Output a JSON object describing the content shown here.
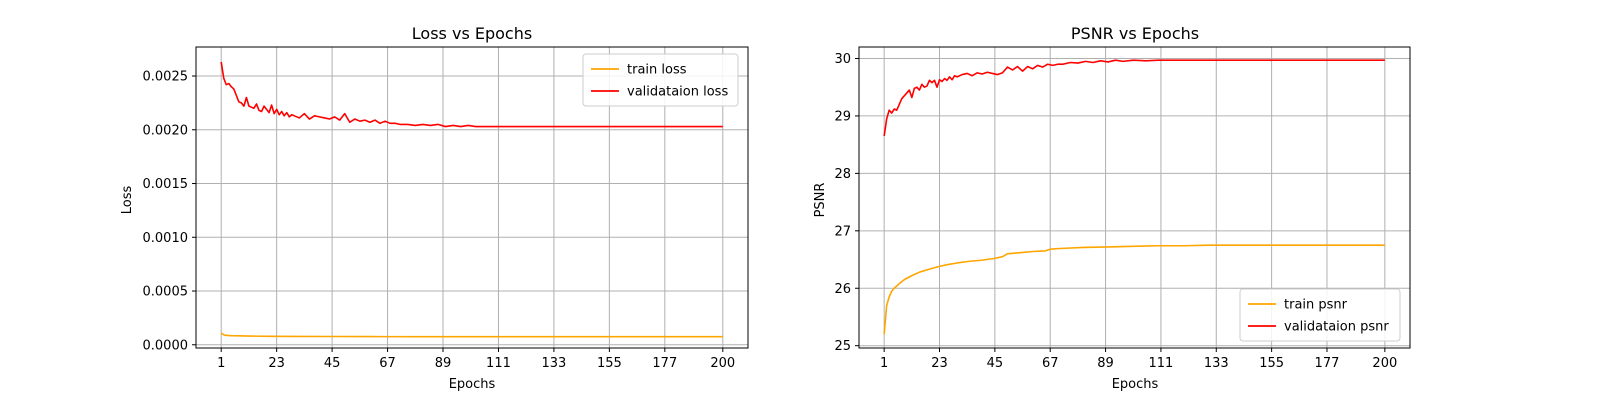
{
  "chart_data": [
    {
      "type": "line",
      "title": "Loss vs Epochs",
      "xlabel": "Epochs",
      "ylabel": "Loss",
      "xlim": [
        -9,
        210
      ],
      "ylim": [
        -3e-05,
        0.00277
      ],
      "xticks": [
        1,
        23,
        45,
        67,
        89,
        111,
        133,
        155,
        177,
        200
      ],
      "yticks": [
        0.0,
        0.0005,
        0.001,
        0.0015,
        0.002,
        0.0025
      ],
      "ytick_labels": [
        "0.0000",
        "0.0005",
        "0.0010",
        "0.0015",
        "0.0020",
        "0.0025"
      ],
      "grid": true,
      "legend_position": "top-right",
      "series": [
        {
          "name": "train loss",
          "color": "#ffa500",
          "x": [
            1,
            2,
            3,
            5,
            8,
            12,
            20,
            30,
            45,
            60,
            80,
            100,
            120,
            140,
            160,
            180,
            200
          ],
          "y": [
            0.00011,
            9.2e-05,
            8.8e-05,
            8.5e-05,
            8.3e-05,
            8.1e-05,
            7.9e-05,
            7.8e-05,
            7.7e-05,
            7.6e-05,
            7.5e-05,
            7.5e-05,
            7.5e-05,
            7.5e-05,
            7.5e-05,
            7.5e-05,
            7.5e-05
          ]
        },
        {
          "name": "validataion loss",
          "color": "#ff0000",
          "x": [
            1,
            2,
            3,
            4,
            5,
            6,
            7,
            8,
            9,
            10,
            11,
            12,
            13,
            14,
            15,
            16,
            17,
            18,
            19,
            20,
            21,
            22,
            23,
            24,
            25,
            26,
            27,
            28,
            29,
            30,
            32,
            34,
            36,
            38,
            40,
            42,
            44,
            46,
            48,
            50,
            52,
            54,
            56,
            58,
            60,
            62,
            64,
            66,
            68,
            70,
            72,
            75,
            78,
            81,
            84,
            87,
            90,
            93,
            96,
            99,
            102,
            106,
            110,
            115,
            120,
            130,
            140,
            150,
            160,
            170,
            180,
            190,
            200
          ],
          "y": [
            0.00263,
            0.00248,
            0.00242,
            0.00243,
            0.0024,
            0.00238,
            0.00232,
            0.00226,
            0.00225,
            0.00222,
            0.0023,
            0.00222,
            0.00221,
            0.0022,
            0.00224,
            0.00218,
            0.00217,
            0.00222,
            0.00219,
            0.00216,
            0.00223,
            0.00215,
            0.00219,
            0.00214,
            0.00217,
            0.00213,
            0.00216,
            0.00212,
            0.00214,
            0.00213,
            0.00211,
            0.00215,
            0.0021,
            0.00213,
            0.00212,
            0.00211,
            0.0021,
            0.00212,
            0.00209,
            0.00215,
            0.00207,
            0.0021,
            0.00208,
            0.00209,
            0.00207,
            0.00209,
            0.00206,
            0.00208,
            0.00206,
            0.00206,
            0.00205,
            0.00205,
            0.00204,
            0.00205,
            0.00204,
            0.00205,
            0.00203,
            0.00204,
            0.00203,
            0.00204,
            0.00203,
            0.00203,
            0.00203,
            0.00203,
            0.00203,
            0.00203,
            0.00203,
            0.00203,
            0.00203,
            0.00203,
            0.00203,
            0.00203,
            0.00203
          ]
        }
      ]
    },
    {
      "type": "line",
      "title": "PSNR vs Epochs",
      "xlabel": "Epochs",
      "ylabel": "PSNR",
      "xlim": [
        -9,
        210
      ],
      "ylim": [
        24.96,
        30.2
      ],
      "xticks": [
        1,
        23,
        45,
        67,
        89,
        111,
        133,
        155,
        177,
        200
      ],
      "yticks": [
        25,
        26,
        27,
        28,
        29,
        30
      ],
      "ytick_labels": [
        "25",
        "26",
        "27",
        "28",
        "29",
        "30"
      ],
      "grid": true,
      "legend_position": "bottom-right",
      "series": [
        {
          "name": "train psnr",
          "color": "#ffa500",
          "x": [
            1,
            2,
            3,
            4,
            5,
            7,
            9,
            12,
            15,
            18,
            22,
            26,
            30,
            35,
            40,
            45,
            48,
            50,
            55,
            60,
            65,
            67,
            70,
            80,
            90,
            100,
            110,
            120,
            130,
            140,
            150,
            160,
            170,
            180,
            190,
            200
          ],
          "y": [
            25.2,
            25.7,
            25.85,
            25.95,
            26.0,
            26.08,
            26.15,
            26.22,
            26.28,
            26.32,
            26.37,
            26.41,
            26.44,
            26.47,
            26.49,
            26.52,
            26.55,
            26.6,
            26.62,
            26.64,
            26.65,
            26.68,
            26.69,
            26.71,
            26.72,
            26.73,
            26.74,
            26.74,
            26.75,
            26.75,
            26.75,
            26.75,
            26.75,
            26.75,
            26.75,
            26.75
          ]
        },
        {
          "name": "validataion psnr",
          "color": "#ff0000",
          "x": [
            1,
            2,
            3,
            4,
            5,
            6,
            7,
            8,
            9,
            10,
            11,
            12,
            13,
            14,
            15,
            16,
            17,
            18,
            19,
            20,
            21,
            22,
            23,
            24,
            25,
            26,
            27,
            28,
            29,
            30,
            32,
            34,
            36,
            38,
            40,
            42,
            44,
            46,
            48,
            50,
            52,
            54,
            56,
            58,
            60,
            62,
            64,
            66,
            68,
            70,
            72,
            75,
            78,
            81,
            84,
            87,
            90,
            93,
            96,
            100,
            105,
            110,
            120,
            130,
            140,
            150,
            160,
            170,
            180,
            190,
            200
          ],
          "y": [
            28.65,
            28.95,
            29.1,
            29.05,
            29.12,
            29.1,
            29.2,
            29.3,
            29.35,
            29.4,
            29.45,
            29.32,
            29.48,
            29.5,
            29.45,
            29.55,
            29.5,
            29.52,
            29.62,
            29.58,
            29.62,
            29.5,
            29.63,
            29.6,
            29.65,
            29.62,
            29.68,
            29.63,
            29.7,
            29.68,
            29.72,
            29.74,
            29.7,
            29.75,
            29.73,
            29.76,
            29.74,
            29.72,
            29.75,
            29.85,
            29.8,
            29.86,
            29.78,
            29.86,
            29.82,
            29.88,
            29.85,
            29.9,
            29.88,
            29.9,
            29.9,
            29.93,
            29.92,
            29.95,
            29.93,
            29.96,
            29.94,
            29.97,
            29.95,
            29.97,
            29.96,
            29.97,
            29.97,
            29.97,
            29.97,
            29.97,
            29.97,
            29.97,
            29.97,
            29.97,
            29.97
          ]
        }
      ]
    }
  ]
}
